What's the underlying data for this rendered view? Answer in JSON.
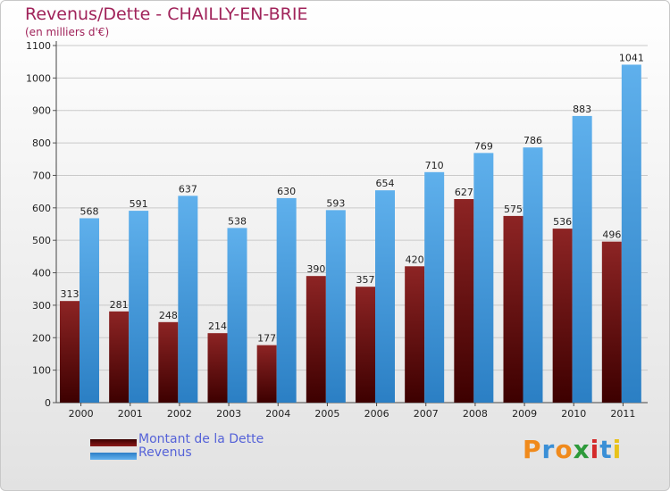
{
  "header": {
    "title": "Revenus/Dette - CHAILLY-EN-BRIE",
    "subtitle": "(en milliers d'€)"
  },
  "chart_data": {
    "type": "bar",
    "title": "Revenus/Dette - CHAILLY-EN-BRIE",
    "ylabel": "(en milliers d'€)",
    "xlabel": "",
    "ylim": [
      0,
      1100
    ],
    "yticks": [
      0,
      100,
      200,
      300,
      400,
      500,
      600,
      700,
      800,
      900,
      1000,
      1100
    ],
    "grid": true,
    "legend_position": "bottom-left",
    "categories": [
      "2000",
      "2001",
      "2002",
      "2003",
      "2004",
      "2005",
      "2006",
      "2007",
      "2008",
      "2009",
      "2010",
      "2011"
    ],
    "series": [
      {
        "name": "Montant de la Dette",
        "color": "#7a1010",
        "values": [
          313,
          281,
          248,
          214,
          177,
          390,
          357,
          420,
          627,
          575,
          536,
          496
        ]
      },
      {
        "name": "Revenus",
        "color": "#3f9be0",
        "values": [
          568,
          591,
          637,
          538,
          630,
          593,
          654,
          710,
          769,
          786,
          883,
          1041
        ]
      }
    ]
  },
  "legend": {
    "debt_label": "Montant de la Dette",
    "revenue_label": "Revenus"
  },
  "logo": {
    "letters": [
      "P",
      "r",
      "o",
      "x",
      "i",
      "t",
      "i"
    ],
    "colors": [
      "#f08a1c",
      "#3a8fd6",
      "#f08a1c",
      "#2d9a3a",
      "#d42a2a",
      "#3a8fd6",
      "#e8c21a"
    ]
  }
}
